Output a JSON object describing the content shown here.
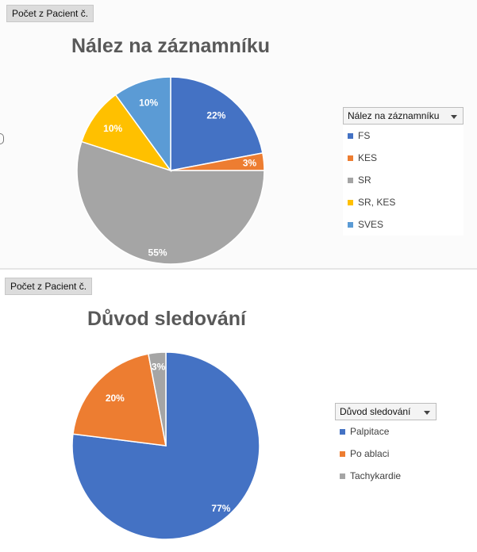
{
  "panels": [
    {
      "field_button": "Počet z Pacient č.",
      "title": "Nález na záznamníku",
      "legend_header": "Nález na záznamníku"
    },
    {
      "field_button": "Počet z Pacient č.",
      "title": "Důvod sledování",
      "legend_header": "Důvod sledování"
    }
  ],
  "chart_data": [
    {
      "type": "pie",
      "title": "Nález na záznamníku",
      "categories": [
        "FS",
        "KES",
        "SR",
        "SR, KES",
        "SVES"
      ],
      "values": [
        22,
        3,
        55,
        10,
        10
      ],
      "labels": [
        "22%",
        "3%",
        "55%",
        "10%",
        "10%"
      ],
      "colors": [
        "#4472C4",
        "#ED7D31",
        "#A5A5A5",
        "#FFC000",
        "#5B9BD5"
      ],
      "label_colors": [
        "#ffffff",
        "#ffffff",
        "#ffffff",
        "#ffffff",
        "#ffffff"
      ],
      "legend_position": "right"
    },
    {
      "type": "pie",
      "title": "Důvod sledování",
      "categories": [
        "Palpitace",
        "Po ablaci",
        "Tachykardie"
      ],
      "values": [
        77,
        20,
        3
      ],
      "labels": [
        "77%",
        "20%",
        "3%"
      ],
      "colors": [
        "#4472C4",
        "#ED7D31",
        "#A5A5A5"
      ],
      "label_colors": [
        "#ffffff",
        "#ffffff",
        "#ffffff"
      ],
      "legend_position": "right"
    }
  ]
}
